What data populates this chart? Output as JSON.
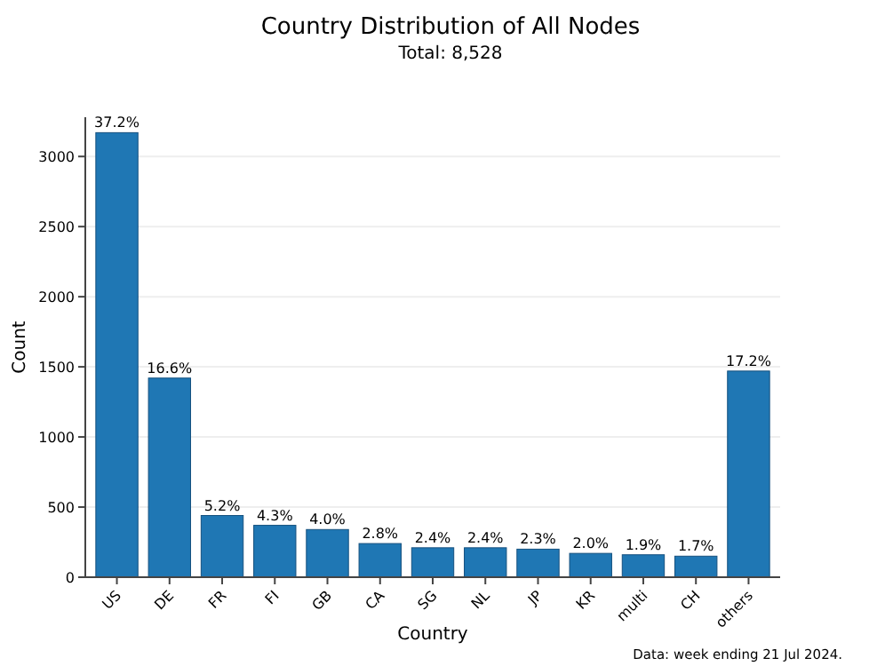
{
  "chart_data": {
    "type": "bar",
    "title": "Country Distribution of All Nodes",
    "subtitle": "Total: 8,528",
    "xlabel": "Country",
    "ylabel": "Count",
    "categories": [
      "US",
      "DE",
      "FR",
      "FI",
      "GB",
      "CA",
      "SG",
      "NL",
      "JP",
      "KR",
      "multi",
      "CH",
      "others"
    ],
    "values": [
      3170,
      1420,
      440,
      370,
      340,
      240,
      210,
      210,
      200,
      170,
      160,
      150,
      1470
    ],
    "color": "#1f77b4",
    "ylim": [
      0,
      3280
    ],
    "yticks": [
      0,
      500,
      1000,
      1500,
      2000,
      2500,
      3000
    ],
    "grid": "y",
    "annotations": [
      {
        "text": "37.2%",
        "x": "US",
        "y": 3170
      },
      {
        "text": "16.6%",
        "x": "DE",
        "y": 1420
      },
      {
        "text": "5.2%",
        "x": "FR",
        "y": 440
      },
      {
        "text": "4.3%",
        "x": "FI",
        "y": 370
      },
      {
        "text": "4.0%",
        "x": "GB",
        "y": 340
      },
      {
        "text": "2.8%",
        "x": "CA",
        "y": 240
      },
      {
        "text": "2.4%",
        "x": "SG",
        "y": 210
      },
      {
        "text": "2.4%",
        "x": "NL",
        "y": 210
      },
      {
        "text": "2.3%",
        "x": "JP",
        "y": 200
      },
      {
        "text": "2.0%",
        "x": "KR",
        "y": 170
      },
      {
        "text": "1.9%",
        "x": "multi",
        "y": 160
      },
      {
        "text": "1.7%",
        "x": "CH",
        "y": 150
      },
      {
        "text": "17.2%",
        "x": "others",
        "y": 1470
      },
      "Data: week ending 21 Jul 2024."
    ]
  }
}
